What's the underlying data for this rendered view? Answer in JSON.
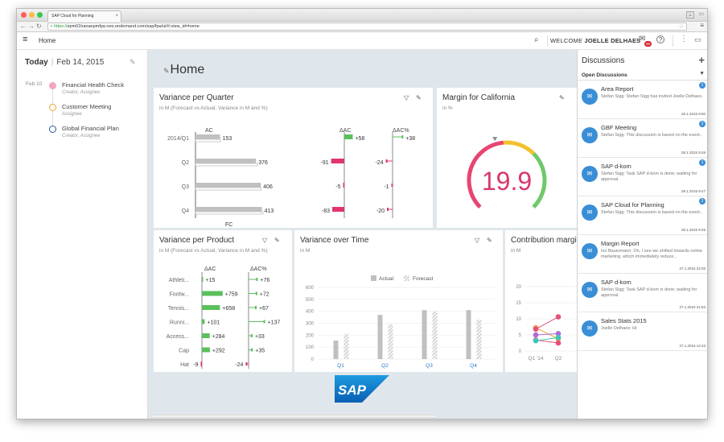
{
  "browser": {
    "tab_title": "SAP Cloud for Planning",
    "url_scheme": "https://",
    "url_rest": "epm01hanaepmfpa.neo.ondemand.com/sap/fpa/ui/#;view_id=home",
    "user_glyph": "⊥"
  },
  "shell": {
    "title": "Home",
    "welcome_prefix": "WELCOME",
    "user_name": "JOELLE DELHAES",
    "notification_count": "56"
  },
  "calendar": {
    "today_label": "Today",
    "date": "Feb 14, 2015",
    "items_date": "Feb 10",
    "items": [
      {
        "title": "Financial Health Check",
        "subtitle": "Creator, Assignee",
        "color": "#f2a6c4",
        "fill": true
      },
      {
        "title": "Customer Meeting",
        "subtitle": "Assignee",
        "color": "#f0a030",
        "fill": false
      },
      {
        "title": "Global Financial Plan",
        "subtitle": "Creator, Assignee",
        "color": "#2a5aa0",
        "fill": false
      }
    ]
  },
  "page": {
    "title": "Home"
  },
  "variance_quarter": {
    "title": "Variance per Quarter",
    "subtitle": "in M (Forecast vs Actual, Variance in M and %)",
    "col_ac": "AC",
    "col_dac": "ΔAC",
    "col_dacp": "ΔAC%",
    "fc_label": "FC",
    "rows": [
      {
        "label": "2014/Q1",
        "ac": 153,
        "fc": 155,
        "dac": 58,
        "dacp": 38
      },
      {
        "label": "Q2",
        "ac": 376,
        "fc": 385,
        "dac": -91,
        "dacp": -24
      },
      {
        "label": "Q3",
        "ac": 406,
        "fc": 408,
        "dac": -5,
        "dacp": -1
      },
      {
        "label": "Q4",
        "ac": 413,
        "fc": 420,
        "dac": -83,
        "dacp": -20
      }
    ]
  },
  "margin": {
    "title": "Margin for California",
    "subtitle": "in %",
    "value": "19.9",
    "gauge_level": 0.44
  },
  "variance_product": {
    "title": "Variance per Product",
    "subtitle": "in M (Forecast vs Actual, Variance in M and %)",
    "col_dac": "ΔAC",
    "col_dacp": "ΔAC%",
    "rows": [
      {
        "label": "Athleti...",
        "dac": 15,
        "dacp": 76
      },
      {
        "label": "Footw...",
        "dac": 759,
        "dacp": 72
      },
      {
        "label": "Tennis...",
        "dac": 658,
        "dacp": 67
      },
      {
        "label": "Runni...",
        "dac": 101,
        "dacp": 137
      },
      {
        "label": "Access...",
        "dac": 284,
        "dacp": 33
      },
      {
        "label": "Cap",
        "dac": 292,
        "dacp": 35
      },
      {
        "label": "Hat",
        "dac": -9,
        "dacp": -24
      }
    ]
  },
  "variance_time": {
    "title": "Variance over Time",
    "subtitle": "in M"
  },
  "contribution": {
    "title": "Contribution margin",
    "subtitle": "in M"
  },
  "discussions": {
    "title": "Discussions",
    "add": "+",
    "filter": "Open Discussions",
    "items": [
      {
        "title": "Area Report",
        "text": "Stefan Sigg: Stefan Sigg has invited Joelle Delhaes.",
        "time": "28.1.2015 9:50",
        "count": "1"
      },
      {
        "title": "GBF Meeting",
        "text": "Stefan Sigg: This discussion is based on the event..",
        "time": "28.1.2015 9:48",
        "count": "2"
      },
      {
        "title": "SAP d-kom",
        "text": "Stefan Sigg: Task SAP d-kom is done; waiting for approval.",
        "time": "28.1.2015 9:47",
        "count": "1"
      },
      {
        "title": "SAP Cloud for Planning",
        "text": "Stefan Sigg: This discussion is based on the event..",
        "time": "28.1.2015 9:46",
        "count": "2"
      },
      {
        "title": "Margin Report",
        "text": "Ivo Bauermann: Oh, I see we shifted towards online marketing, which immediately reduce...",
        "time": "27.1.2015 22:03",
        "count": ""
      },
      {
        "title": "SAP d-kom",
        "text": "Stefan Sigg: Task SAP d-kom is done; waiting for approval.",
        "time": "27.1.2015 21:53",
        "count": ""
      },
      {
        "title": "Sales Stats 2015",
        "text": "Joelle Delhaes: Hi",
        "time": "27.1.2015 14:43",
        "count": ""
      }
    ]
  },
  "chart_data": [
    {
      "type": "bar",
      "title": "Variance over Time",
      "subtitle": "in M",
      "categories": [
        "Q1",
        "Q2",
        "Q3",
        "Q4"
      ],
      "series": [
        {
          "name": "Actual",
          "values": [
            155,
            370,
            410,
            410
          ]
        },
        {
          "name": "Forecast",
          "values": [
            210,
            290,
            400,
            330
          ]
        }
      ],
      "yticks": [
        0,
        100,
        200,
        300,
        400,
        500,
        600
      ],
      "ylim": [
        0,
        600
      ],
      "legend": "top"
    },
    {
      "type": "line",
      "title": "Contribution margin",
      "subtitle": "in M",
      "x": [
        "Q1 '14",
        "Q2"
      ],
      "yticks": [
        0,
        5,
        10,
        15,
        20
      ],
      "ylim": [
        0,
        20
      ],
      "series": [
        {
          "values": [
            7.2,
            3.8
          ],
          "color": "#f0a030"
        },
        {
          "values": [
            6.8,
            10.6
          ],
          "color": "#e8507a"
        },
        {
          "values": [
            5,
            5.4
          ],
          "color": "#b06ad8"
        },
        {
          "values": [
            3.4,
            2.5
          ],
          "color": "#e8507a"
        },
        {
          "values": [
            3.2,
            4.2
          ],
          "color": "#3ec6b8"
        }
      ]
    }
  ],
  "colors": {
    "accent": "#3a8ed6",
    "positive": "#5bbf5b",
    "negative": "#e0356f",
    "bar": "#c0c0c0"
  }
}
